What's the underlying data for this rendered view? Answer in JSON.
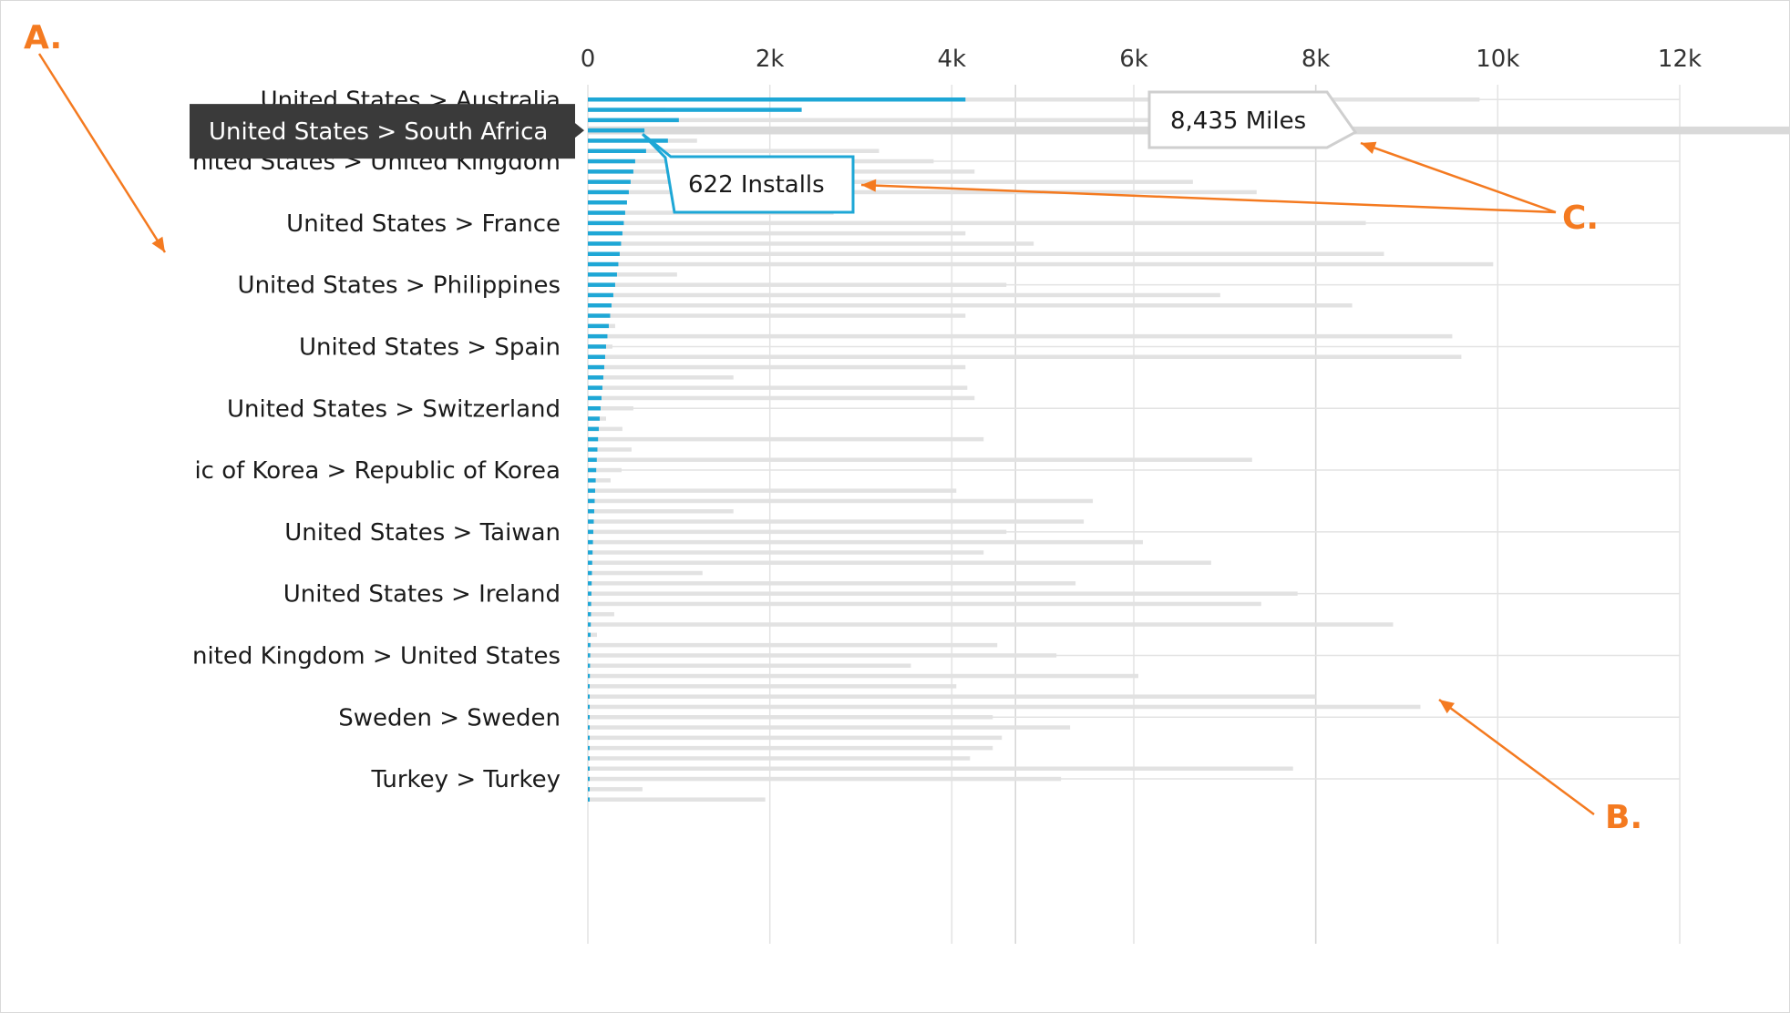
{
  "chart_data": {
    "type": "bar",
    "orientation": "horizontal",
    "x_ticks": [
      "0",
      "2k",
      "4k",
      "6k",
      "8k",
      "10k",
      "12k"
    ],
    "xlim": [
      0,
      12000
    ],
    "grid": true,
    "highlight_row": 3,
    "row_labels": [
      {
        "row": 0,
        "text": "United States > Australia"
      },
      {
        "row": 6,
        "text": "nited States > United Kingdom"
      },
      {
        "row": 12,
        "text": "United States > France"
      },
      {
        "row": 18,
        "text": "United States > Philippines"
      },
      {
        "row": 24,
        "text": "United States > Spain"
      },
      {
        "row": 30,
        "text": "United States > Switzerland"
      },
      {
        "row": 36,
        "text": "ic of Korea > Republic of Korea"
      },
      {
        "row": 42,
        "text": "United States > Taiwan"
      },
      {
        "row": 48,
        "text": "United States > Ireland"
      },
      {
        "row": 54,
        "text": "nited Kingdom > United States"
      },
      {
        "row": 60,
        "text": "Sweden > Sweden"
      },
      {
        "row": 66,
        "text": "Turkey > Turkey"
      }
    ],
    "series": [
      {
        "name": "Installs",
        "color": "#1ea7d6",
        "values": [
          4150,
          2350,
          1000,
          622,
          880,
          640,
          520,
          500,
          470,
          450,
          430,
          410,
          395,
          380,
          365,
          350,
          335,
          320,
          300,
          280,
          260,
          245,
          230,
          215,
          200,
          190,
          180,
          170,
          160,
          150,
          140,
          130,
          120,
          112,
          105,
          98,
          92,
          86,
          80,
          75,
          70,
          65,
          60,
          56,
          52,
          48,
          45,
          42,
          39,
          36,
          34,
          32,
          30,
          28,
          26,
          24,
          22,
          20,
          18,
          17,
          16,
          15,
          14,
          13,
          12,
          11,
          10,
          9,
          8
        ]
      },
      {
        "name": "Miles",
        "color": "#e2e2e2",
        "values": [
          9800,
          850,
          6200,
          8435,
          1200,
          3200,
          3800,
          4250,
          6650,
          7350,
          400,
          2700,
          8550,
          4150,
          4900,
          8750,
          9950,
          980,
          4600,
          6950,
          8400,
          4150,
          300,
          9500,
          270,
          9600,
          4150,
          1600,
          4170,
          4250,
          500,
          200,
          380,
          4350,
          480,
          7300,
          370,
          250,
          4050,
          5550,
          1600,
          5450,
          4600,
          6100,
          4350,
          6850,
          1260,
          5360,
          7800,
          7400,
          290,
          8850,
          100,
          4500,
          5150,
          3550,
          6050,
          4050,
          8000,
          9150,
          4450,
          5300,
          4550,
          4450,
          4200,
          7750,
          5200,
          600,
          1950
        ]
      }
    ]
  },
  "tooltips": {
    "row_tooltip": "United States > South Africa",
    "installs_tooltip": "622 Installs",
    "miles_tooltip": "8,435 Miles"
  },
  "annotations": {
    "a": "A.",
    "b": "B.",
    "c": "C.",
    "color": "#f47a20"
  }
}
